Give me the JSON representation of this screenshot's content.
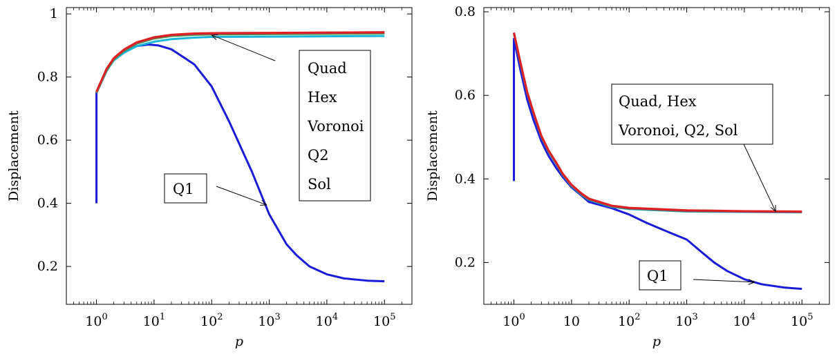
{
  "chart_data": [
    {
      "type": "line",
      "xscale": "log",
      "xlim": [
        0.3,
        300000
      ],
      "ylim": [
        0.08,
        1.02
      ],
      "xlabel": "p",
      "ylabel": "Displacement",
      "x_ticks": [
        {
          "base": "10",
          "exp": "0",
          "value": 1
        },
        {
          "base": "10",
          "exp": "1",
          "value": 10
        },
        {
          "base": "10",
          "exp": "2",
          "value": 100
        },
        {
          "base": "10",
          "exp": "3",
          "value": 1000
        },
        {
          "base": "10",
          "exp": "4",
          "value": 10000
        },
        {
          "base": "10",
          "exp": "5",
          "value": 100000
        }
      ],
      "y_ticks": [
        {
          "label": "0.2",
          "value": 0.2
        },
        {
          "label": "0.4",
          "value": 0.4
        },
        {
          "label": "0.6",
          "value": 0.6
        },
        {
          "label": "0.8",
          "value": 0.8
        },
        {
          "label": "1",
          "value": 1.0
        }
      ],
      "grid": false,
      "series": [
        {
          "name": "Q1",
          "color": "#1a1adb",
          "x": [
            1,
            1,
            1.5,
            2,
            3,
            5,
            8,
            12,
            20,
            50,
            100,
            200,
            500,
            1000,
            2000,
            3000,
            5000,
            10000,
            20000,
            50000,
            100000
          ],
          "y": [
            0.4,
            0.75,
            0.82,
            0.855,
            0.88,
            0.898,
            0.903,
            0.9,
            0.888,
            0.84,
            0.77,
            0.66,
            0.5,
            0.365,
            0.27,
            0.235,
            0.2,
            0.175,
            0.162,
            0.155,
            0.153
          ]
        },
        {
          "name": "Sol",
          "color": "#19b5d8",
          "x": [
            1,
            1.5,
            2,
            3,
            5,
            10,
            20,
            50,
            100,
            1000,
            10000,
            100000
          ],
          "y": [
            0.75,
            0.82,
            0.853,
            0.877,
            0.898,
            0.912,
            0.92,
            0.925,
            0.927,
            0.928,
            0.929,
            0.93
          ]
        },
        {
          "name": "Quad",
          "color": "#2fa344",
          "x": [
            1,
            1.5,
            2,
            3,
            5,
            10,
            20,
            50,
            100,
            1000,
            10000,
            100000
          ],
          "y": [
            0.75,
            0.822,
            0.856,
            0.883,
            0.906,
            0.922,
            0.93,
            0.934,
            0.935,
            0.936,
            0.937,
            0.938
          ]
        },
        {
          "name": "Hex",
          "color": "#b36b2e",
          "x": [
            1,
            1.5,
            2,
            3,
            5,
            10,
            20,
            50,
            100,
            1000,
            10000,
            100000
          ],
          "y": [
            0.752,
            0.824,
            0.858,
            0.885,
            0.908,
            0.924,
            0.932,
            0.936,
            0.937,
            0.938,
            0.939,
            0.94
          ]
        },
        {
          "name": "Voronoi",
          "color": "#8a3d8a",
          "x": [
            1,
            1.5,
            2,
            3,
            5,
            10,
            20,
            50,
            100,
            1000,
            10000,
            100000
          ],
          "y": [
            0.753,
            0.825,
            0.859,
            0.886,
            0.909,
            0.925,
            0.933,
            0.937,
            0.938,
            0.939,
            0.94,
            0.941
          ]
        },
        {
          "name": "Q2",
          "color": "#e02020",
          "x": [
            1,
            1.5,
            2,
            3,
            5,
            10,
            20,
            50,
            100,
            1000,
            10000,
            100000
          ],
          "y": [
            0.754,
            0.826,
            0.86,
            0.887,
            0.91,
            0.926,
            0.934,
            0.938,
            0.939,
            0.94,
            0.941,
            0.942
          ]
        }
      ],
      "annotations": [
        {
          "lines": [
            "Quad",
            "Hex",
            "Voronoi",
            "Q2",
            "Sol"
          ],
          "target_x": 100,
          "target_y": 0.933,
          "from": "left-of-box"
        },
        {
          "lines": [
            "Q1"
          ],
          "target_x": 900,
          "target_y": 0.395,
          "from": "right-of-box"
        }
      ]
    },
    {
      "type": "line",
      "xscale": "log",
      "xlim": [
        0.3,
        300000
      ],
      "ylim": [
        0.1,
        0.81
      ],
      "xlabel": "p",
      "ylabel": "Displacement",
      "x_ticks": [
        {
          "base": "10",
          "exp": "0",
          "value": 1
        },
        {
          "base": "",
          "exp": "",
          "label": "10",
          "value": 10
        },
        {
          "base": "10",
          "exp": "2",
          "value": 100
        },
        {
          "base": "10",
          "exp": "3",
          "value": 1000
        },
        {
          "base": "10",
          "exp": "4",
          "value": 10000
        },
        {
          "base": "10",
          "exp": "5",
          "value": 100000
        }
      ],
      "y_ticks": [
        {
          "label": "0.2",
          "value": 0.2
        },
        {
          "label": "0.4",
          "value": 0.4
        },
        {
          "label": "0.6",
          "value": 0.6
        },
        {
          "label": "0.8",
          "value": 0.8
        }
      ],
      "grid": false,
      "series": [
        {
          "name": "Q1",
          "color": "#1a1adb",
          "x": [
            1,
            1,
            1.3,
            1.7,
            2.2,
            3,
            4,
            5.5,
            7,
            10,
            15,
            20,
            50,
            100,
            200,
            500,
            1000,
            2000,
            3000,
            5000,
            10000,
            20000,
            50000,
            100000
          ],
          "y": [
            0.395,
            0.735,
            0.66,
            0.59,
            0.54,
            0.49,
            0.455,
            0.425,
            0.405,
            0.38,
            0.36,
            0.345,
            0.33,
            0.315,
            0.295,
            0.272,
            0.255,
            0.22,
            0.2,
            0.18,
            0.16,
            0.148,
            0.14,
            0.137
          ]
        },
        {
          "name": "Sol",
          "color": "#19b5d8",
          "x": [
            1,
            1.3,
            1.7,
            2.2,
            3,
            4,
            5.5,
            7,
            10,
            15,
            20,
            50,
            100,
            1000,
            10000,
            100000
          ],
          "y": [
            0.748,
            0.675,
            0.605,
            0.555,
            0.5,
            0.465,
            0.435,
            0.41,
            0.383,
            0.362,
            0.35,
            0.333,
            0.328,
            0.322,
            0.321,
            0.32
          ]
        },
        {
          "name": "Quad",
          "color": "#2fa344",
          "x": [
            1,
            1.3,
            1.7,
            2.2,
            3,
            4,
            5.5,
            7,
            10,
            15,
            20,
            50,
            100,
            1000,
            10000,
            100000
          ],
          "y": [
            0.748,
            0.676,
            0.606,
            0.556,
            0.501,
            0.466,
            0.436,
            0.411,
            0.384,
            0.363,
            0.351,
            0.334,
            0.329,
            0.323,
            0.322,
            0.321
          ]
        },
        {
          "name": "Hex",
          "color": "#b36b2e",
          "x": [
            1,
            1.3,
            1.7,
            2.2,
            3,
            4,
            5.5,
            7,
            10,
            15,
            20,
            50,
            100,
            1000,
            10000,
            100000
          ],
          "y": [
            0.749,
            0.677,
            0.607,
            0.557,
            0.502,
            0.467,
            0.437,
            0.412,
            0.385,
            0.364,
            0.352,
            0.335,
            0.33,
            0.324,
            0.322,
            0.321
          ]
        },
        {
          "name": "Voronoi",
          "color": "#8a3d8a",
          "x": [
            1,
            1.3,
            1.7,
            2.2,
            3,
            4,
            5.5,
            7,
            10,
            15,
            20,
            50,
            100,
            1000,
            10000,
            100000
          ],
          "y": [
            0.749,
            0.677,
            0.607,
            0.557,
            0.502,
            0.467,
            0.437,
            0.412,
            0.385,
            0.364,
            0.352,
            0.335,
            0.33,
            0.324,
            0.322,
            0.321
          ]
        },
        {
          "name": "Q2",
          "color": "#e02020",
          "x": [
            1,
            1.3,
            1.7,
            2.2,
            3,
            4,
            5.5,
            7,
            10,
            15,
            20,
            50,
            100,
            1000,
            10000,
            100000
          ],
          "y": [
            0.75,
            0.678,
            0.608,
            0.558,
            0.503,
            0.468,
            0.438,
            0.413,
            0.386,
            0.365,
            0.353,
            0.336,
            0.331,
            0.325,
            0.323,
            0.322
          ]
        }
      ],
      "annotations": [
        {
          "lines": [
            "Quad, Hex",
            "Voronoi, Q2, Sol"
          ],
          "target_x": 35000,
          "target_y": 0.322,
          "from": "below-box"
        },
        {
          "lines": [
            "Q1"
          ],
          "target_x": 15000,
          "target_y": 0.153,
          "from": "right-of-box"
        }
      ]
    }
  ]
}
